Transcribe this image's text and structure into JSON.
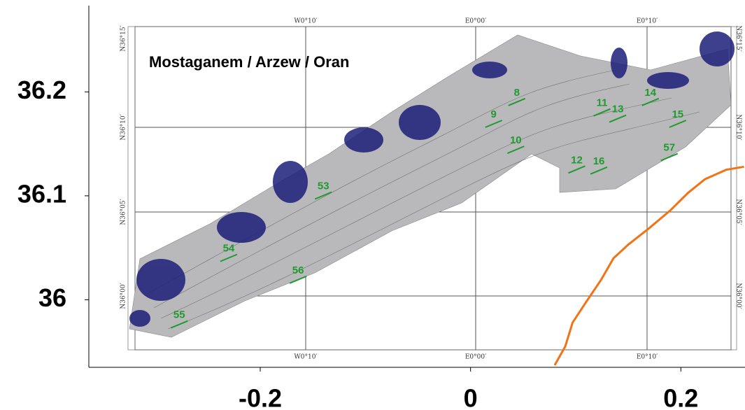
{
  "chart_data": {
    "type": "scatter",
    "title": "Mostaganem / Arzew / Oran",
    "xlim": [
      -0.363,
      0.261
    ],
    "ylim": [
      35.935,
      36.283
    ],
    "xticks": [
      -0.2,
      0,
      0.2
    ],
    "yticks": [
      36,
      36.1,
      36.2
    ],
    "graticule": {
      "top": [
        "W0°10′",
        "E0°00′",
        "E0°10′"
      ],
      "left": [
        "N36°15′",
        "N36°10′",
        "N36°05′",
        "N36°00′"
      ]
    },
    "stations": {
      "color": "#1e9b2e",
      "labels": [
        "8",
        "9",
        "10",
        "11",
        "13",
        "14",
        "15",
        "57",
        "12",
        "16",
        "53",
        "54",
        "56",
        "55"
      ],
      "x": [
        0.044,
        0.022,
        0.043,
        0.125,
        0.14,
        0.171,
        0.197,
        0.189,
        0.101,
        0.122,
        -0.14,
        -0.23,
        -0.164,
        -0.277
      ],
      "y": [
        36.199,
        36.178,
        36.153,
        36.189,
        36.183,
        36.199,
        36.178,
        36.146,
        36.134,
        36.133,
        36.109,
        36.049,
        36.028,
        35.985
      ]
    },
    "line": {
      "color": "#f07416",
      "x": [
        0.08,
        0.09,
        0.097,
        0.11,
        0.124,
        0.136,
        0.15,
        0.17,
        0.19,
        0.207,
        0.223,
        0.243,
        0.26
      ],
      "y": [
        35.937,
        35.955,
        35.978,
        35.998,
        36.019,
        36.04,
        36.053,
        36.069,
        36.086,
        36.103,
        36.116,
        36.125,
        36.128
      ]
    }
  }
}
